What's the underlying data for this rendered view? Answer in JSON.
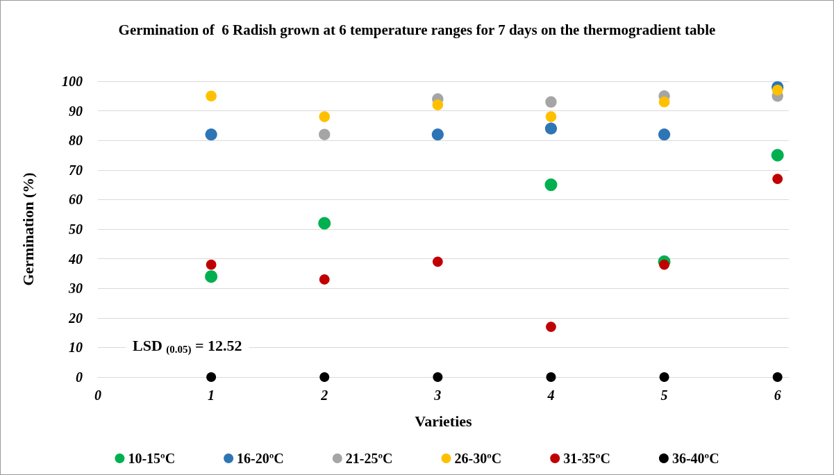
{
  "chart_data": {
    "type": "scatter",
    "title": "Germination of  6 Radish grown at 6 temperature ranges for 7 days on the thermogradient table",
    "xlabel": "Varieties",
    "ylabel": "Germination (%)",
    "x": [
      1,
      2,
      3,
      4,
      5,
      6
    ],
    "series": [
      {
        "name": "10-15ºC",
        "color": "#00b050",
        "values": [
          34,
          52,
          null,
          65,
          39,
          75
        ]
      },
      {
        "name": "16-20ºC",
        "color": "#2e75b6",
        "values": [
          82,
          null,
          82,
          84,
          82,
          98
        ]
      },
      {
        "name": "21-25ºC",
        "color": "#a5a5a5",
        "values": [
          null,
          82,
          94,
          93,
          95,
          95
        ]
      },
      {
        "name": "26-30ºC",
        "color": "#ffc000",
        "values": [
          95,
          88,
          92,
          88,
          93,
          97
        ]
      },
      {
        "name": "31-35ºC",
        "color": "#c00000",
        "values": [
          38,
          33,
          39,
          17,
          38,
          67
        ]
      },
      {
        "name": "36-40ºC",
        "color": "#000000",
        "values": [
          0,
          0,
          0,
          0,
          0,
          0
        ]
      }
    ],
    "xlim": [
      0,
      6.1
    ],
    "xticks": [
      0,
      1,
      2,
      3,
      4,
      5,
      6
    ],
    "ylim": [
      0,
      100
    ],
    "yticks": [
      0,
      10,
      20,
      30,
      40,
      50,
      60,
      70,
      80,
      90,
      100
    ],
    "annotations": [
      "LSD $_{(0.05)}$ = 12.52"
    ],
    "grid": "y",
    "legend": "bottom",
    "marker": "circle"
  }
}
